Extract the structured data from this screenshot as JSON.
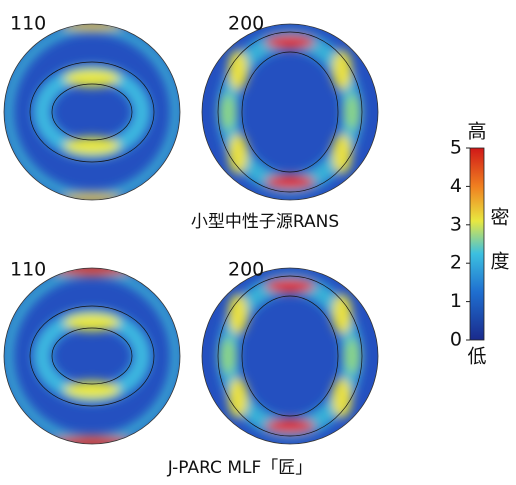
{
  "panels": [
    {
      "label": "110"
    },
    {
      "label": "200"
    },
    {
      "label": "110"
    },
    {
      "label": "200"
    }
  ],
  "captions": [
    "小型中性子源RANS",
    "J-PARC MLF「匠」"
  ],
  "colorbar": {
    "lim": [
      0,
      5
    ],
    "ticks": [
      0,
      1,
      2,
      3,
      4,
      5
    ],
    "top_label": "高",
    "bottom_label": "低",
    "side_label": [
      "密",
      "度"
    ]
  }
}
